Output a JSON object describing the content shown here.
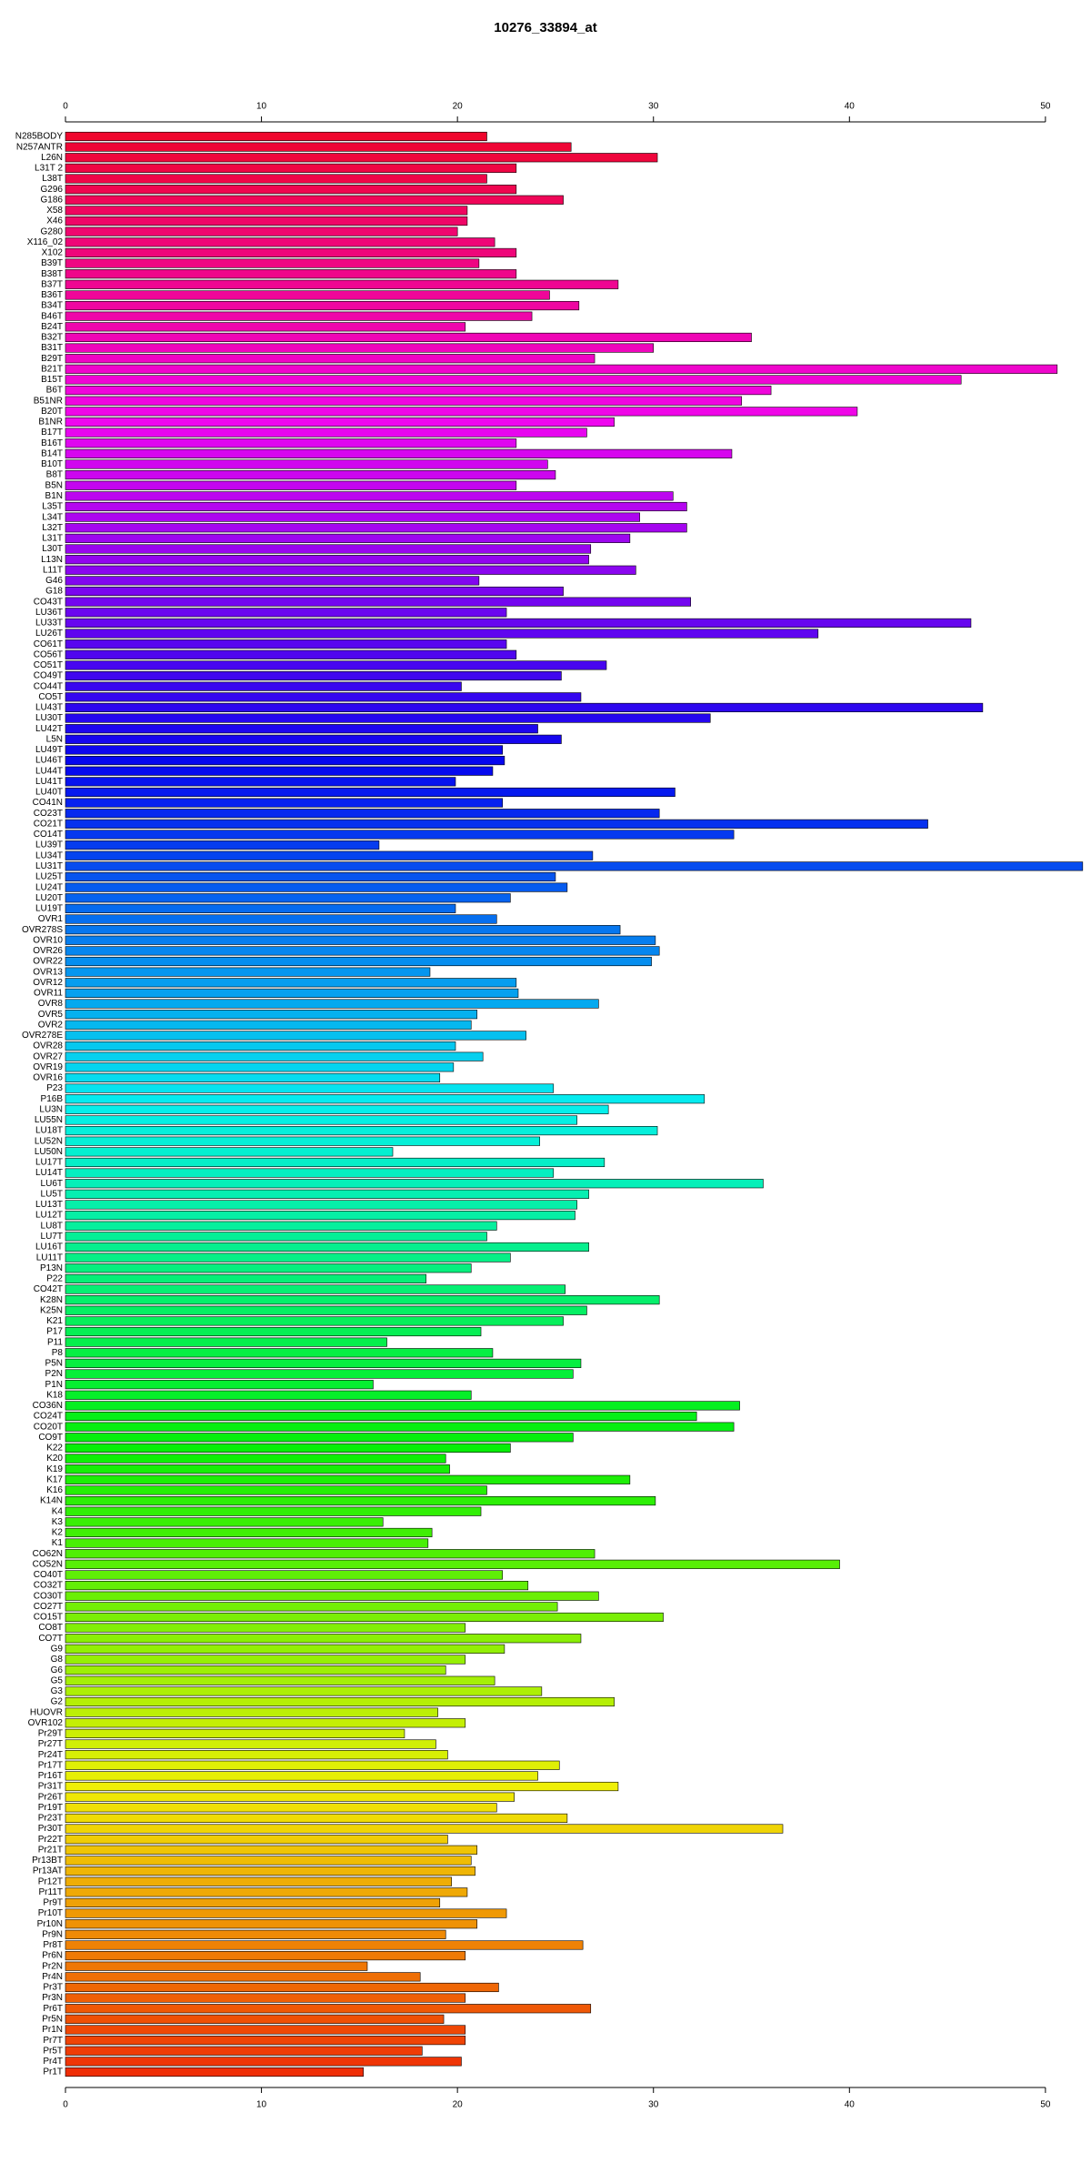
{
  "chart_data": {
    "type": "barh",
    "title": "10276_33894_at",
    "categories": [
      "N285BODY",
      "N257ANTR",
      "L26N",
      "L31T 2",
      "L38T",
      "G296",
      "G186",
      "X58",
      "X46",
      "G280",
      "X116_02",
      "X102",
      "B39T",
      "B38T",
      "B37T",
      "B36T",
      "B34T",
      "B46T",
      "B24T",
      "B32T",
      "B31T",
      "B29T",
      "B21T",
      "B15T",
      "B6T",
      "B51NR",
      "B20T",
      "B1NR",
      "B17T",
      "B16T",
      "B14T",
      "B10T",
      "B8T",
      "B5N",
      "B1N",
      "L35T",
      "L34T",
      "L32T",
      "L31T",
      "L30T",
      "L13N",
      "L11T",
      "G46",
      "G18",
      "CO43T",
      "LU36T",
      "LU33T",
      "LU26T",
      "CO61T",
      "CO56T",
      "CO51T",
      "CO49T",
      "CO44T",
      "CO5T",
      "LU43T",
      "LU30T",
      "LU42T",
      "L5N",
      "LU49T",
      "LU46T",
      "LU44T",
      "LU41T",
      "LU40T",
      "CO41N",
      "CO23T",
      "CO21T",
      "CO14T",
      "LU39T",
      "LU34T",
      "LU31T",
      "LU25T",
      "LU24T",
      "LU20T",
      "LU19T",
      "OVR1",
      "OVR278S",
      "OVR10",
      "OVR26",
      "OVR22",
      "OVR13",
      "OVR12",
      "OVR11",
      "OVR8",
      "OVR5",
      "OVR2",
      "OVR278E",
      "OVR28",
      "OVR27",
      "OVR19",
      "OVR16",
      "P23",
      "P16B",
      "LU3N",
      "LU55N",
      "LU18T",
      "LU52N",
      "LU50N",
      "LU17T",
      "LU14T",
      "LU6T",
      "LU5T",
      "LU13T",
      "LU12T",
      "LU8T",
      "LU7T",
      "LU16T",
      "LU11T",
      "P13N",
      "P22",
      "CO42T",
      "K28N",
      "K25N",
      "K21",
      "P17",
      "P11",
      "P8",
      "P5N",
      "P2N",
      "P1N",
      "K18",
      "CO36N",
      "CO24T",
      "CO20T",
      "CO9T",
      "K22",
      "K20",
      "K19",
      "K17",
      "K16",
      "K14N",
      "K4",
      "K3",
      "K2",
      "K1",
      "CO62N",
      "CO52N",
      "CO40T",
      "CO32T",
      "CO30T",
      "CO27T",
      "CO15T",
      "CO8T",
      "CO7T",
      "G9",
      "G8",
      "G6",
      "G5",
      "G3",
      "G2",
      "HUOVR",
      "OVR102",
      "Pr29T",
      "Pr27T",
      "Pr24T",
      "Pr17T",
      "Pr16T",
      "Pr31T",
      "Pr26T",
      "Pr19T",
      "Pr23T",
      "Pr30T",
      "Pr22T",
      "Pr21T",
      "Pr13BT",
      "Pr13AT",
      "Pr12T",
      "Pr11T",
      "Pr9T",
      "Pr10T",
      "Pr10N",
      "Pr9N",
      "Pr8T",
      "Pr6N",
      "Pr2N",
      "Pr4N",
      "Pr3T",
      "Pr3N",
      "Pr6T",
      "Pr5N",
      "Pr1N",
      "Pr7T",
      "Pr5T",
      "Pr4T",
      "Pr1T"
    ],
    "values": [
      21.5,
      25.8,
      30.2,
      23.0,
      21.5,
      23.0,
      25.4,
      20.5,
      20.5,
      20.0,
      21.9,
      23.0,
      21.1,
      23.0,
      28.2,
      24.7,
      26.2,
      23.8,
      20.4,
      35.0,
      30.0,
      27.0,
      50.6,
      45.7,
      36.0,
      34.5,
      40.4,
      28.0,
      26.6,
      23.0,
      34.0,
      24.6,
      25.0,
      23.0,
      31.0,
      31.7,
      29.3,
      31.7,
      28.8,
      26.8,
      26.7,
      29.1,
      21.1,
      25.4,
      31.9,
      22.5,
      46.2,
      38.4,
      22.5,
      23.0,
      27.6,
      25.3,
      20.2,
      26.3,
      46.8,
      32.9,
      24.1,
      25.3,
      22.3,
      22.4,
      21.8,
      19.9,
      31.1,
      22.3,
      30.3,
      44.0,
      34.1,
      16.0,
      26.9,
      51.9,
      25.0,
      25.6,
      22.7,
      19.9,
      22.0,
      28.3,
      30.1,
      30.3,
      29.9,
      18.6,
      23.0,
      23.1,
      27.2,
      21.0,
      20.7,
      23.5,
      19.9,
      21.3,
      19.8,
      19.1,
      24.9,
      32.6,
      27.7,
      26.1,
      30.2,
      24.2,
      16.7,
      27.5,
      24.9,
      35.6,
      26.7,
      26.1,
      26.0,
      22.0,
      21.5,
      26.7,
      22.7,
      20.7,
      18.4,
      25.5,
      30.3,
      26.6,
      25.4,
      21.2,
      16.4,
      21.8,
      26.3,
      25.9,
      15.7,
      20.7,
      34.4,
      32.2,
      34.1,
      25.9,
      22.7,
      19.4,
      19.6,
      28.8,
      21.5,
      30.1,
      21.2,
      16.2,
      18.7,
      18.5,
      27.0,
      39.5,
      22.3,
      23.6,
      27.2,
      25.1,
      30.5,
      20.4,
      26.3,
      22.4,
      20.4,
      19.4,
      21.9,
      24.3,
      28.0,
      19.0,
      20.4,
      17.3,
      18.9,
      19.5,
      25.2,
      24.1,
      28.2,
      22.9,
      22.0,
      25.6,
      36.6,
      19.5,
      21.0,
      20.7,
      20.9,
      19.7,
      20.5,
      19.1,
      22.5,
      21.0,
      19.4,
      26.4,
      20.4,
      15.4,
      18.1,
      22.1,
      20.4,
      26.8,
      19.3,
      20.4,
      20.4,
      18.2,
      20.2,
      15.2
    ],
    "colors": [
      "hsl(350,95%,48%)",
      "hsl(348,95%,48%)",
      "hsl(346,95%,48%)",
      "hsl(344,95%,48%)",
      "hsl(343,95%,48%)",
      "hsl(341,95%,48%)",
      "hsl(339,95%,48%)",
      "hsl(337,95%,48%)",
      "hsl(335,95%,48%)",
      "hsl(333,95%,48%)",
      "hsl(331,95%,48%)",
      "hsl(330,95%,48%)",
      "hsl(328,95%,48%)",
      "hsl(326,95%,48%)",
      "hsl(324,95%,48%)",
      "hsl(322,95%,48%)",
      "hsl(320,95%,48%)",
      "hsl(318,95%,48%)",
      "hsl(317,95%,48%)",
      "hsl(315,95%,48%)",
      "hsl(313,95%,48%)",
      "hsl(311,95%,48%)",
      "hsl(309,95%,48%)",
      "hsl(307,95%,48%)",
      "hsl(305,95%,48%)",
      "hsl(304,95%,48%)",
      "hsl(302,95%,48%)",
      "hsl(300,95%,48%)",
      "hsl(298,95%,48%)",
      "hsl(296,95%,48%)",
      "hsl(294,95%,48%)",
      "hsl(292,95%,48%)",
      "hsl(291,95%,48%)",
      "hsl(289,95%,48%)",
      "hsl(287,95%,48%)",
      "hsl(285,95%,48%)",
      "hsl(283,95%,48%)",
      "hsl(281,95%,48%)",
      "hsl(279,95%,48%)",
      "hsl(278,95%,48%)",
      "hsl(276,95%,48%)",
      "hsl(274,95%,48%)",
      "hsl(272,95%,48%)",
      "hsl(270,95%,48%)",
      "hsl(268,95%,48%)",
      "hsl(266,95%,48%)",
      "hsl(265,95%,48%)",
      "hsl(263,95%,48%)",
      "hsl(261,95%,48%)",
      "hsl(259,95%,48%)",
      "hsl(257,95%,48%)",
      "hsl(255,95%,48%)",
      "hsl(253,95%,48%)",
      "hsl(252,95%,48%)",
      "hsl(250,95%,48%)",
      "hsl(248,95%,48%)",
      "hsl(246,95%,48%)",
      "hsl(244,95%,48%)",
      "hsl(242,95%,48%)",
      "hsl(240,95%,48%)",
      "hsl(239,95%,48%)",
      "hsl(237,95%,48%)",
      "hsl(235,95%,48%)",
      "hsl(233,95%,48%)",
      "hsl(231,95%,48%)",
      "hsl(229,95%,48%)",
      "hsl(227,95%,48%)",
      "hsl(226,95%,48%)",
      "hsl(224,95%,48%)",
      "hsl(222,95%,48%)",
      "hsl(220,95%,48%)",
      "hsl(218,95%,48%)",
      "hsl(216,95%,48%)",
      "hsl(214,95%,48%)",
      "hsl(213,95%,48%)",
      "hsl(211,95%,48%)",
      "hsl(209,95%,48%)",
      "hsl(207,95%,48%)",
      "hsl(205,95%,48%)",
      "hsl(203,95%,48%)",
      "hsl(201,95%,48%)",
      "hsl(200,95%,48%)",
      "hsl(198,95%,48%)",
      "hsl(196,95%,48%)",
      "hsl(194,95%,48%)",
      "hsl(192,95%,48%)",
      "hsl(190,95%,48%)",
      "hsl(188,95%,48%)",
      "hsl(187,95%,48%)",
      "hsl(185,95%,48%)",
      "hsl(183,95%,48%)",
      "hsl(181,95%,48%)",
      "hsl(179,95%,48%)",
      "hsl(177,95%,48%)",
      "hsl(175,95%,48%)",
      "hsl(174,95%,48%)",
      "hsl(172,95%,48%)",
      "hsl(170,95%,48%)",
      "hsl(168,95%,48%)",
      "hsl(166,95%,48%)",
      "hsl(164,95%,48%)",
      "hsl(162,95%,48%)",
      "hsl(161,95%,48%)",
      "hsl(159,95%,48%)",
      "hsl(157,95%,48%)",
      "hsl(155,95%,48%)",
      "hsl(153,95%,48%)",
      "hsl(151,95%,48%)",
      "hsl(149,95%,48%)",
      "hsl(148,95%,48%)",
      "hsl(146,95%,48%)",
      "hsl(144,95%,48%)",
      "hsl(142,95%,48%)",
      "hsl(140,95%,48%)",
      "hsl(138,95%,48%)",
      "hsl(136,95%,48%)",
      "hsl(135,95%,48%)",
      "hsl(133,95%,48%)",
      "hsl(131,95%,48%)",
      "hsl(129,95%,48%)",
      "hsl(127,95%,48%)",
      "hsl(125,95%,48%)",
      "hsl(123,95%,48%)",
      "hsl(122,95%,48%)",
      "hsl(120,95%,48%)",
      "hsl(118,95%,48%)",
      "hsl(116,95%,48%)",
      "hsl(114,95%,48%)",
      "hsl(112,95%,48%)",
      "hsl(110,95%,48%)",
      "hsl(109,95%,48%)",
      "hsl(107,95%,48%)",
      "hsl(105,95%,48%)",
      "hsl(103,95%,48%)",
      "hsl(101,95%,48%)",
      "hsl(99,95%,48%)",
      "hsl(97,95%,48%)",
      "hsl(96,95%,48%)",
      "hsl(94,95%,48%)",
      "hsl(92,95%,48%)",
      "hsl(90,95%,48%)",
      "hsl(88,95%,48%)",
      "hsl(86,95%,48%)",
      "hsl(84,95%,48%)",
      "hsl(83,95%,48%)",
      "hsl(81,95%,48%)",
      "hsl(79,95%,48%)",
      "hsl(77,95%,48%)",
      "hsl(75,95%,48%)",
      "hsl(73,95%,48%)",
      "hsl(71,95%,48%)",
      "hsl(69,95%,48%)",
      "hsl(68,95%,48%)",
      "hsl(66,95%,48%)",
      "hsl(64,95%,48%)",
      "hsl(62,95%,48%)",
      "hsl(60,95%,48%)",
      "hsl(58,95%,48%)",
      "hsl(56,95%,48%)",
      "hsl(55,95%,48%)",
      "hsl(53,95%,48%)",
      "hsl(51,95%,48%)",
      "hsl(49,95%,48%)",
      "hsl(47,95%,48%)",
      "hsl(45,95%,48%)",
      "hsl(43,95%,48%)",
      "hsl(42,95%,48%)",
      "hsl(40,95%,48%)",
      "hsl(38,95%,48%)",
      "hsl(36,95%,48%)",
      "hsl(34,95%,48%)",
      "hsl(32,95%,48%)",
      "hsl(30,95%,48%)",
      "hsl(29,95%,48%)",
      "hsl(27,95%,48%)",
      "hsl(25,95%,48%)",
      "hsl(23,95%,48%)",
      "hsl(21,95%,48%)",
      "hsl(19,95%,48%)",
      "hsl(17,95%,48%)",
      "hsl(16,95%,48%)",
      "hsl(14,95%,48%)",
      "hsl(12,95%,48%)",
      "hsl(10,95%,48%)"
    ],
    "xlim": [
      0,
      52
    ],
    "xticks": [
      0,
      10,
      20,
      30,
      40,
      50
    ]
  }
}
